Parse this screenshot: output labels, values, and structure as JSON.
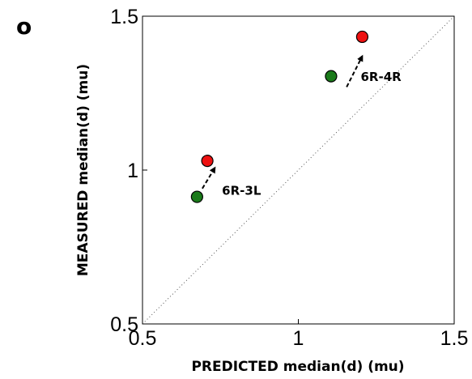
{
  "panel_label": "o",
  "chart_data": {
    "type": "scatter",
    "title": "",
    "xlabel": "PREDICTED median(d) (mu)",
    "ylabel": "MEASURED median(d) (mu)",
    "xlim": [
      0.5,
      1.5
    ],
    "ylim": [
      0.5,
      1.5
    ],
    "xticks": [
      0.5,
      1,
      1.5
    ],
    "yticks": [
      0.5,
      1,
      1.5
    ],
    "xtick_labels": [
      "0.5",
      "1",
      "1.5"
    ],
    "ytick_labels": [
      "0.5",
      "1",
      "1.5"
    ],
    "grid": false,
    "legend": "none",
    "identity_line": true,
    "colors": {
      "green": "#1a7a1a",
      "red": "#ee1111",
      "arrow": "#000000",
      "diagonal": "#555555"
    },
    "series": [
      {
        "color": "green",
        "points": [
          {
            "x": 0.675,
            "y": 0.913
          },
          {
            "x": 1.105,
            "y": 1.305
          }
        ]
      },
      {
        "color": "red",
        "points": [
          {
            "x": 0.708,
            "y": 1.03
          },
          {
            "x": 1.205,
            "y": 1.433
          }
        ]
      }
    ],
    "annotations": [
      {
        "label": "6R-3L",
        "arrow_from": {
          "x": 0.692,
          "y": 0.94
        },
        "arrow_to": {
          "x": 0.732,
          "y": 1.007
        },
        "label_at": {
          "x": 0.755,
          "y": 0.92
        }
      },
      {
        "label": "6R-4R",
        "arrow_from": {
          "x": 1.155,
          "y": 1.27
        },
        "arrow_to": {
          "x": 1.205,
          "y": 1.37
        },
        "label_at": {
          "x": 1.2,
          "y": 1.29
        }
      }
    ]
  }
}
